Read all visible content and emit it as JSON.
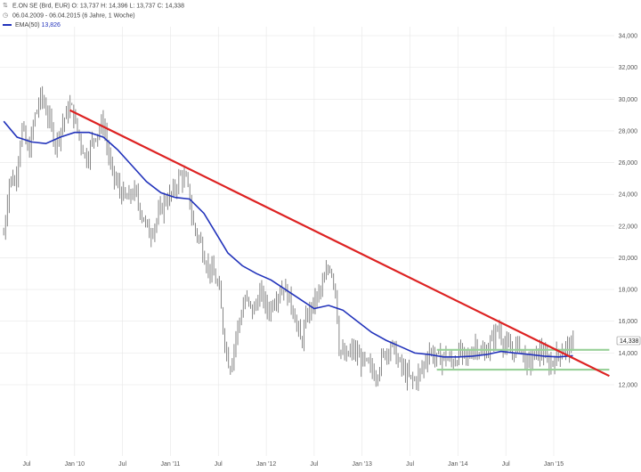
{
  "header": {
    "instrument": "E.ON SE (Brd, EUR)",
    "ohlc": "O: 13,737  H: 14,396  L: 13,737  C: 14,338",
    "range": "06.04.2009 - 06.04.2015 (6 Jahre, 1 Woche)",
    "ema_label": "EMA(50)",
    "ema_value": "13,826"
  },
  "colors": {
    "price_bars": "#7a7a7a",
    "ema": "#2233bb",
    "trendline": "#dd2222",
    "channel": "#99d199",
    "grid": "#e6e6e6"
  },
  "chart_data": {
    "type": "line",
    "title": "",
    "xlabel": "",
    "ylabel": "",
    "ylim": [
      11000,
      35000
    ],
    "y_ticks": [
      "12,000",
      "14,000",
      "16,000",
      "18,000",
      "20,000",
      "22,000",
      "24,000",
      "26,000",
      "28,000",
      "30,000",
      "32,000",
      "34,000"
    ],
    "x_ticks": [
      "Jul",
      "Jan '10",
      "Jul",
      "Jan '11",
      "Jul",
      "Jan '12",
      "Jul",
      "Jan '13",
      "Jul",
      "Jan '14",
      "Jul",
      "Jan '15"
    ],
    "last_price_label": "14,338",
    "price_path_points": [
      [
        2009.26,
        21.5
      ],
      [
        2009.32,
        25.0
      ],
      [
        2009.38,
        24.8
      ],
      [
        2009.45,
        28.2
      ],
      [
        2009.52,
        26.5
      ],
      [
        2009.58,
        28.8
      ],
      [
        2009.65,
        30.2
      ],
      [
        2009.72,
        29.0
      ],
      [
        2009.8,
        27.2
      ],
      [
        2009.88,
        28.6
      ],
      [
        2009.96,
        29.6
      ],
      [
        2010.04,
        27.8
      ],
      [
        2010.12,
        26.2
      ],
      [
        2010.2,
        27.6
      ],
      [
        2010.3,
        28.5
      ],
      [
        2010.38,
        25.5
      ],
      [
        2010.46,
        24.4
      ],
      [
        2010.54,
        23.6
      ],
      [
        2010.62,
        24.2
      ],
      [
        2010.7,
        22.8
      ],
      [
        2010.78,
        21.5
      ],
      [
        2010.86,
        22.4
      ],
      [
        2010.94,
        23.6
      ],
      [
        2011.02,
        24.0
      ],
      [
        2011.1,
        25.2
      ],
      [
        2011.17,
        24.8
      ],
      [
        2011.24,
        22.0
      ],
      [
        2011.3,
        21.2
      ],
      [
        2011.38,
        19.6
      ],
      [
        2011.44,
        19.0
      ],
      [
        2011.5,
        18.2
      ],
      [
        2011.56,
        15.0
      ],
      [
        2011.62,
        13.0
      ],
      [
        2011.7,
        15.6
      ],
      [
        2011.78,
        17.4
      ],
      [
        2011.86,
        16.6
      ],
      [
        2011.94,
        17.8
      ],
      [
        2012.02,
        16.6
      ],
      [
        2012.1,
        17.6
      ],
      [
        2012.18,
        18.2
      ],
      [
        2012.28,
        16.8
      ],
      [
        2012.36,
        14.6
      ],
      [
        2012.44,
        16.6
      ],
      [
        2012.52,
        17.4
      ],
      [
        2012.6,
        18.4
      ],
      [
        2012.66,
        19.6
      ],
      [
        2012.72,
        18.2
      ],
      [
        2012.76,
        14.4
      ],
      [
        2012.82,
        13.6
      ],
      [
        2012.9,
        14.2
      ],
      [
        2012.98,
        13.6
      ],
      [
        2013.06,
        13.2
      ],
      [
        2013.14,
        12.6
      ],
      [
        2013.22,
        13.8
      ],
      [
        2013.3,
        14.6
      ],
      [
        2013.38,
        13.4
      ],
      [
        2013.46,
        12.6
      ],
      [
        2013.54,
        12.2
      ],
      [
        2013.62,
        12.9
      ],
      [
        2013.7,
        14.2
      ],
      [
        2013.78,
        13.6
      ],
      [
        2013.86,
        13.8
      ],
      [
        2013.94,
        13.4
      ],
      [
        2014.02,
        14.0
      ],
      [
        2014.1,
        13.6
      ],
      [
        2014.18,
        14.6
      ],
      [
        2014.26,
        13.8
      ],
      [
        2014.34,
        14.6
      ],
      [
        2014.42,
        15.6
      ],
      [
        2014.48,
        14.6
      ],
      [
        2014.56,
        14.0
      ],
      [
        2014.64,
        14.6
      ],
      [
        2014.72,
        13.2
      ],
      [
        2014.8,
        13.8
      ],
      [
        2014.88,
        14.2
      ],
      [
        2014.94,
        13.2
      ],
      [
        2015.0,
        13.6
      ],
      [
        2015.06,
        14.0
      ],
      [
        2015.12,
        14.4
      ],
      [
        2015.2,
        14.34
      ]
    ],
    "ema_points": [
      [
        2009.26,
        28.6
      ],
      [
        2009.4,
        27.6
      ],
      [
        2009.55,
        27.3
      ],
      [
        2009.7,
        27.2
      ],
      [
        2009.85,
        27.6
      ],
      [
        2010.0,
        27.9
      ],
      [
        2010.15,
        27.9
      ],
      [
        2010.3,
        27.6
      ],
      [
        2010.45,
        26.8
      ],
      [
        2010.6,
        25.8
      ],
      [
        2010.75,
        24.8
      ],
      [
        2010.9,
        24.1
      ],
      [
        2011.05,
        23.8
      ],
      [
        2011.2,
        23.7
      ],
      [
        2011.35,
        22.8
      ],
      [
        2011.5,
        21.3
      ],
      [
        2011.6,
        20.3
      ],
      [
        2011.75,
        19.5
      ],
      [
        2011.9,
        19.0
      ],
      [
        2012.05,
        18.6
      ],
      [
        2012.2,
        18.0
      ],
      [
        2012.35,
        17.4
      ],
      [
        2012.5,
        16.8
      ],
      [
        2012.65,
        17.0
      ],
      [
        2012.8,
        16.7
      ],
      [
        2012.95,
        16.0
      ],
      [
        2013.1,
        15.3
      ],
      [
        2013.25,
        14.8
      ],
      [
        2013.4,
        14.4
      ],
      [
        2013.55,
        14.0
      ],
      [
        2013.7,
        13.9
      ],
      [
        2013.85,
        13.75
      ],
      [
        2014.0,
        13.75
      ],
      [
        2014.15,
        13.8
      ],
      [
        2014.3,
        13.9
      ],
      [
        2014.45,
        14.1
      ],
      [
        2014.6,
        14.0
      ],
      [
        2014.75,
        13.9
      ],
      [
        2014.9,
        13.8
      ],
      [
        2015.05,
        13.75
      ],
      [
        2015.2,
        13.83
      ]
    ],
    "trendline": [
      [
        2009.95,
        29.3
      ],
      [
        2015.58,
        12.55
      ]
    ],
    "channel_lines": [
      {
        "y": 14.2,
        "x_from": 2013.78,
        "x_to": 2015.58
      },
      {
        "y": 12.95,
        "x_from": 2013.78,
        "x_to": 2015.58
      }
    ]
  }
}
